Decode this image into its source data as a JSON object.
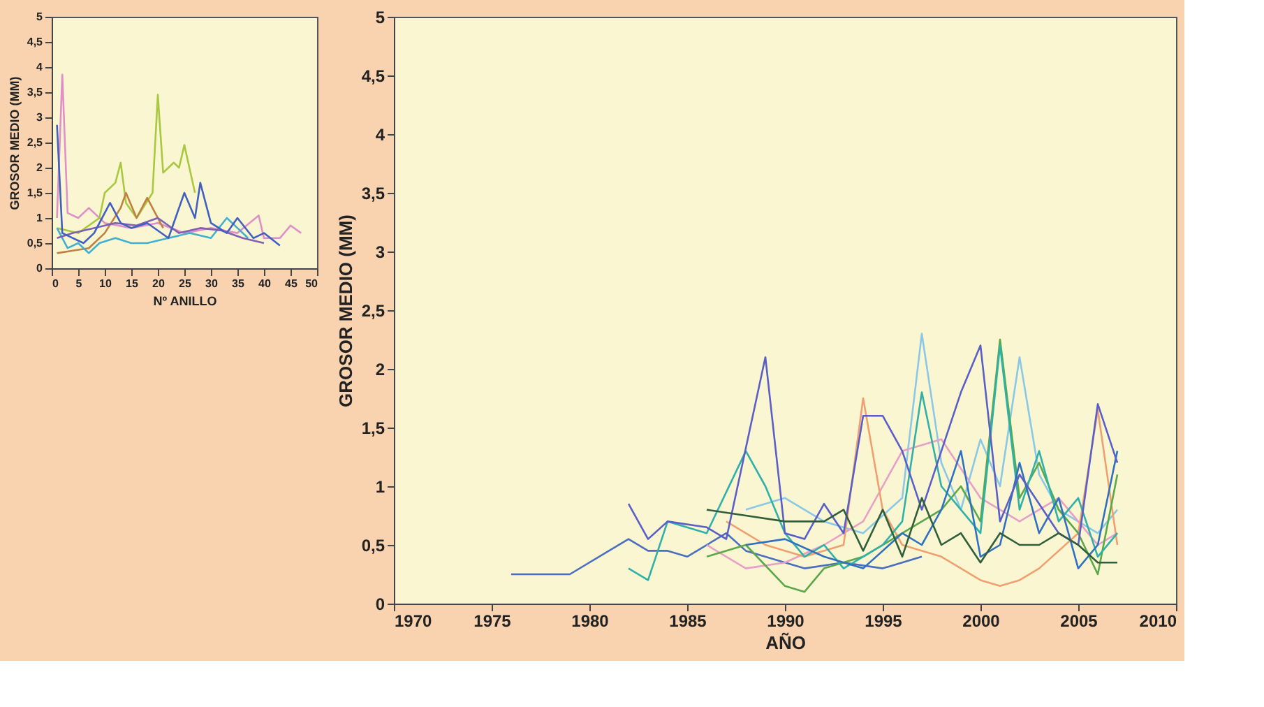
{
  "chart_data": [
    {
      "type": "line",
      "xlabel": "Nº ANILLO",
      "ylabel": "GROSOR MEDIO (MM)",
      "xlim": [
        0,
        50
      ],
      "ylim": [
        0,
        5
      ],
      "xticks": [
        0,
        5,
        10,
        15,
        20,
        25,
        30,
        35,
        40,
        45,
        50
      ],
      "yticks": [
        0,
        {
          "value": 0.5,
          "label": "0,5"
        },
        1,
        {
          "value": 1.5,
          "label": "1,5"
        },
        2,
        {
          "value": 2.5,
          "label": "2,5"
        },
        3,
        {
          "value": 3.5,
          "label": "3,5"
        },
        4,
        {
          "value": 4.5,
          "label": "4,5"
        },
        5
      ],
      "grid": false,
      "marker": "none",
      "line_style": "solid",
      "series": [
        {
          "color": "#e090c8",
          "x": [
            1,
            2,
            3,
            5,
            7,
            10,
            15,
            20,
            25,
            30,
            35,
            39,
            40,
            43,
            45,
            47
          ],
          "values": [
            1.0,
            3.85,
            1.1,
            1.0,
            1.2,
            0.9,
            0.8,
            0.9,
            0.7,
            0.8,
            0.7,
            1.05,
            0.6,
            0.6,
            0.85,
            0.7
          ]
        },
        {
          "color": "#a8c840",
          "x": [
            1,
            5,
            9,
            10,
            12,
            13,
            14,
            16,
            19,
            20,
            21,
            23,
            24,
            25,
            27
          ],
          "values": [
            0.8,
            0.7,
            1.0,
            1.5,
            1.7,
            2.1,
            1.3,
            1.0,
            1.5,
            3.45,
            1.9,
            2.1,
            2.0,
            2.45,
            1.5
          ]
        },
        {
          "color": "#c08040",
          "x": [
            1,
            4,
            7,
            10,
            13,
            14,
            16,
            18,
            19,
            21
          ],
          "values": [
            0.3,
            0.35,
            0.4,
            0.7,
            1.2,
            1.5,
            1.0,
            1.4,
            1.2,
            0.8
          ]
        },
        {
          "color": "#40b0d0",
          "x": [
            1,
            3,
            5,
            7,
            9,
            12,
            15,
            18,
            22,
            26,
            30,
            33,
            35,
            37
          ],
          "values": [
            0.8,
            0.4,
            0.5,
            0.3,
            0.5,
            0.6,
            0.5,
            0.5,
            0.6,
            0.7,
            0.6,
            1.0,
            0.8,
            0.6
          ]
        },
        {
          "color": "#8060b0",
          "x": [
            1,
            4,
            8,
            12,
            16,
            20,
            24,
            28,
            32,
            36,
            40
          ],
          "values": [
            0.6,
            0.7,
            0.8,
            0.9,
            0.85,
            1.0,
            0.7,
            0.8,
            0.75,
            0.6,
            0.5
          ]
        },
        {
          "color": "#4060c0",
          "x": [
            1,
            2,
            4,
            6,
            8,
            11,
            13,
            15,
            18,
            22,
            25,
            27,
            28,
            30,
            33,
            35,
            38,
            40,
            43
          ],
          "values": [
            2.85,
            0.7,
            0.6,
            0.5,
            0.7,
            1.3,
            0.9,
            0.8,
            0.9,
            0.6,
            1.5,
            1.0,
            1.7,
            0.9,
            0.7,
            1.0,
            0.6,
            0.7,
            0.45
          ]
        }
      ]
    },
    {
      "type": "line",
      "xlabel": "AÑO",
      "ylabel": "GROSOR MEDIO (MM)",
      "xlim": [
        1970,
        2010
      ],
      "ylim": [
        0,
        5
      ],
      "xticks": [
        1970,
        1975,
        1980,
        1985,
        1990,
        1995,
        2000,
        2005,
        2010
      ],
      "yticks": [
        0,
        {
          "value": 0.5,
          "label": "0,5"
        },
        1,
        {
          "value": 1.5,
          "label": "1,5"
        },
        2,
        {
          "value": 2.5,
          "label": "2,5"
        },
        3,
        {
          "value": 3.5,
          "label": "3,5"
        },
        4,
        {
          "value": 4.5,
          "label": "4,5"
        },
        5
      ],
      "grid": false,
      "marker": "none",
      "line_style": "solid",
      "series": [
        {
          "color": "#4a6fc0",
          "x": [
            1976,
            1979,
            1981,
            1982,
            1983,
            1984,
            1985,
            1987,
            1988,
            1990,
            1991,
            1993,
            1995,
            1997
          ],
          "values": [
            0.25,
            0.25,
            0.45,
            0.55,
            0.45,
            0.45,
            0.4,
            0.6,
            0.45,
            0.35,
            0.3,
            0.35,
            0.3,
            0.4
          ]
        },
        {
          "color": "#8ac8e8",
          "x": [
            1988,
            1990,
            1992,
            1994,
            1996,
            1997,
            1998,
            1999,
            2000,
            2001,
            2002,
            2003,
            2004,
            2006,
            2007
          ],
          "values": [
            0.8,
            0.9,
            0.7,
            0.6,
            0.9,
            2.3,
            1.2,
            0.8,
            1.4,
            1.0,
            2.1,
            1.1,
            0.8,
            0.6,
            0.8
          ]
        },
        {
          "color": "#e8a0c8",
          "x": [
            1986,
            1988,
            1990,
            1992,
            1994,
            1996,
            1998,
            2000,
            2002,
            2004,
            2006,
            2007
          ],
          "values": [
            0.5,
            0.3,
            0.35,
            0.5,
            0.7,
            1.3,
            1.4,
            0.9,
            0.7,
            0.9,
            0.5,
            0.6
          ]
        },
        {
          "color": "#f0a070",
          "x": [
            1987,
            1989,
            1991,
            1993,
            1994,
            1995,
            1996,
            1998,
            1999,
            2000,
            2001,
            2002,
            2003,
            2005,
            2006,
            2007
          ],
          "values": [
            0.7,
            0.5,
            0.4,
            0.5,
            1.75,
            0.8,
            0.5,
            0.4,
            0.3,
            0.2,
            0.15,
            0.2,
            0.3,
            0.6,
            1.65,
            0.5
          ]
        },
        {
          "color": "#5aa84a",
          "x": [
            1986,
            1988,
            1990,
            1991,
            1992,
            1994,
            1996,
            1998,
            1999,
            2000,
            2001,
            2002,
            2003,
            2004,
            2005,
            2006,
            2007
          ],
          "values": [
            0.4,
            0.5,
            0.15,
            0.1,
            0.3,
            0.4,
            0.6,
            0.8,
            1.0,
            0.7,
            2.25,
            0.9,
            1.2,
            0.8,
            0.6,
            0.25,
            1.1
          ]
        },
        {
          "color": "#2fb0a8",
          "x": [
            1982,
            1983,
            1984,
            1986,
            1988,
            1989,
            1990,
            1991,
            1992,
            1993,
            1995,
            1996,
            1997,
            1998,
            1999,
            2000,
            2001,
            2002,
            2003,
            2004,
            2005,
            2006,
            2007
          ],
          "values": [
            0.3,
            0.2,
            0.7,
            0.6,
            1.3,
            1.0,
            0.6,
            0.4,
            0.5,
            0.3,
            0.5,
            0.7,
            1.8,
            1.0,
            0.8,
            0.6,
            2.2,
            0.8,
            1.3,
            0.7,
            0.9,
            0.4,
            0.6
          ]
        },
        {
          "color": "#3070c0",
          "x": [
            1988,
            1990,
            1992,
            1994,
            1996,
            1997,
            1998,
            1999,
            2000,
            2001,
            2002,
            2003,
            2004,
            2005,
            2006,
            2007
          ],
          "values": [
            0.5,
            0.55,
            0.4,
            0.3,
            0.6,
            0.5,
            0.8,
            1.3,
            0.4,
            0.5,
            1.2,
            0.6,
            0.9,
            0.3,
            0.5,
            1.3
          ]
        },
        {
          "color": "#5a5fc8",
          "x": [
            1982,
            1983,
            1984,
            1986,
            1987,
            1989,
            1990,
            1991,
            1992,
            1993,
            1994,
            1995,
            1996,
            1997,
            1999,
            2000,
            2001,
            2002,
            2004,
            2005,
            2006,
            2007
          ],
          "values": [
            0.85,
            0.55,
            0.7,
            0.65,
            0.55,
            2.1,
            0.6,
            0.55,
            0.85,
            0.6,
            1.6,
            1.6,
            1.3,
            0.8,
            1.8,
            2.2,
            0.7,
            1.1,
            0.6,
            0.5,
            1.7,
            1.2
          ]
        },
        {
          "color": "#2f5f3a",
          "x": [
            1986,
            1988,
            1990,
            1992,
            1993,
            1994,
            1995,
            1996,
            1997,
            1998,
            1999,
            2000,
            2001,
            2002,
            2003,
            2004,
            2005,
            2006,
            2007
          ],
          "values": [
            0.8,
            0.75,
            0.7,
            0.7,
            0.8,
            0.45,
            0.8,
            0.4,
            0.9,
            0.5,
            0.6,
            0.35,
            0.6,
            0.5,
            0.5,
            0.6,
            0.5,
            0.35,
            0.35
          ]
        }
      ]
    }
  ]
}
